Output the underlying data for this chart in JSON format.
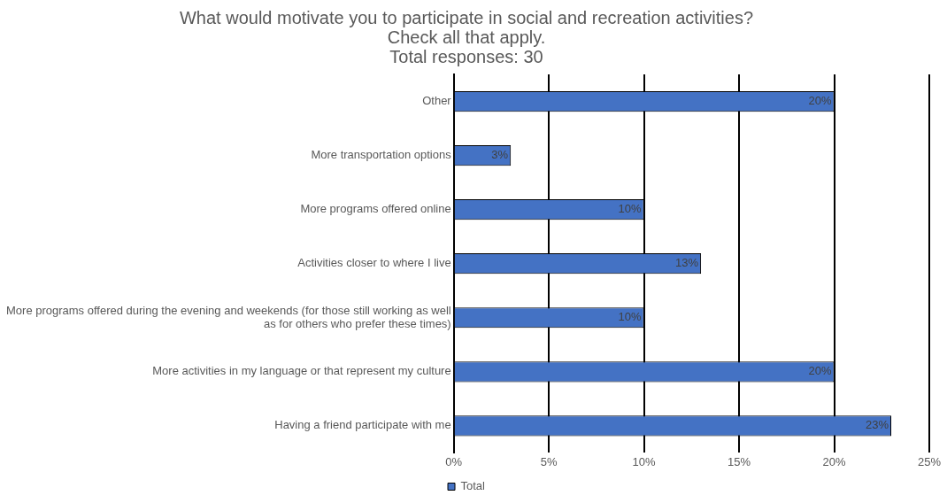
{
  "chart_data": {
    "type": "bar",
    "orientation": "horizontal",
    "title": "What would motivate you to participate in social and recreation activities? Check all that apply.",
    "subtitle": "Total responses: 30",
    "categories": [
      "Other",
      "More transportation options",
      "More programs offered online",
      "Activities closer to where I live",
      "More programs offered during the evening and weekends (for those still working as well as for others who prefer these times)",
      "More activities in my language or that represent my culture",
      "Having a friend participate with me"
    ],
    "series": [
      {
        "name": "Total",
        "color": "#4472c4",
        "values": [
          20,
          3,
          10,
          13,
          10,
          20,
          23
        ],
        "value_labels": [
          "20%",
          "3%",
          "10%",
          "13%",
          "10%",
          "20%",
          "23%"
        ]
      }
    ],
    "xlim": [
      0,
      25
    ],
    "xticks": [
      {
        "value": 0,
        "label": "0%"
      },
      {
        "value": 5,
        "label": "5%"
      },
      {
        "value": 10,
        "label": "10%"
      },
      {
        "value": 15,
        "label": "15%"
      },
      {
        "value": 20,
        "label": "20%"
      },
      {
        "value": 25,
        "label": "25%"
      }
    ],
    "grid": "x",
    "legend": "bottom"
  }
}
